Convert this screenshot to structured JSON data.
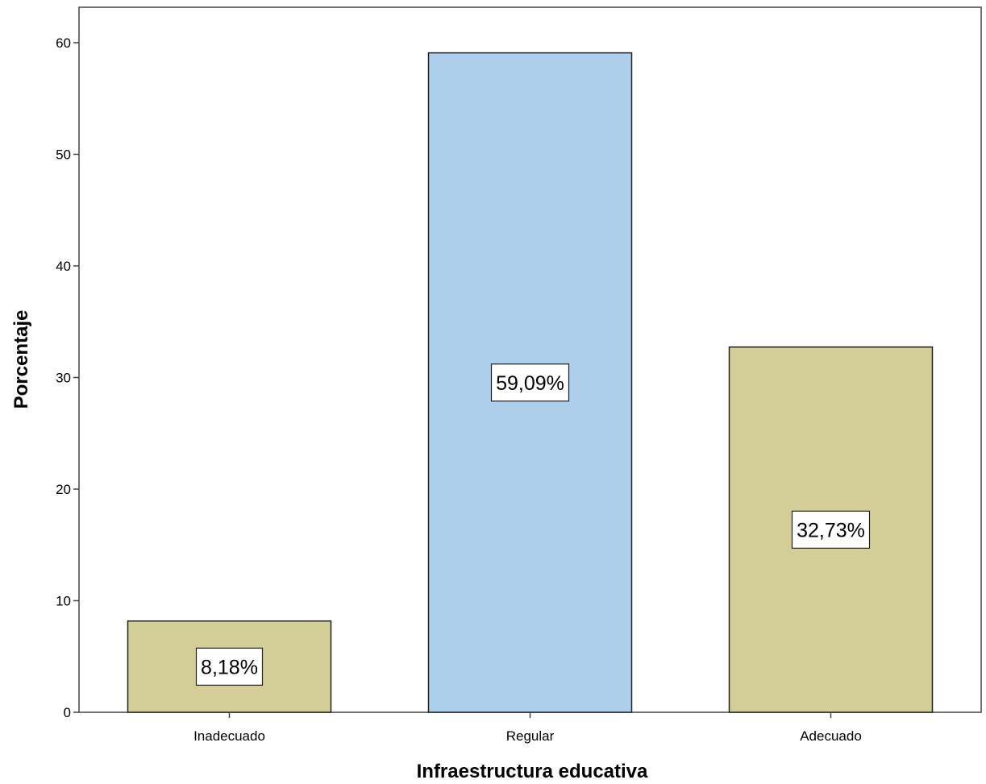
{
  "chart_data": {
    "type": "bar",
    "categories": [
      "Inadecuado",
      "Regular",
      "Adecuado"
    ],
    "values": [
      8.18,
      59.09,
      32.73
    ],
    "data_labels": [
      "8,18%",
      "59,09%",
      "32,73%"
    ],
    "bar_colors": [
      "#d3ce98",
      "#aecfec",
      "#d3ce98"
    ],
    "xlabel": "Infraestructura educativa",
    "ylabel": "Porcentaje",
    "ylim": [
      0,
      63
    ],
    "yticks": [
      0,
      10,
      20,
      30,
      40,
      50,
      60
    ],
    "grid": false,
    "legend": "none"
  }
}
